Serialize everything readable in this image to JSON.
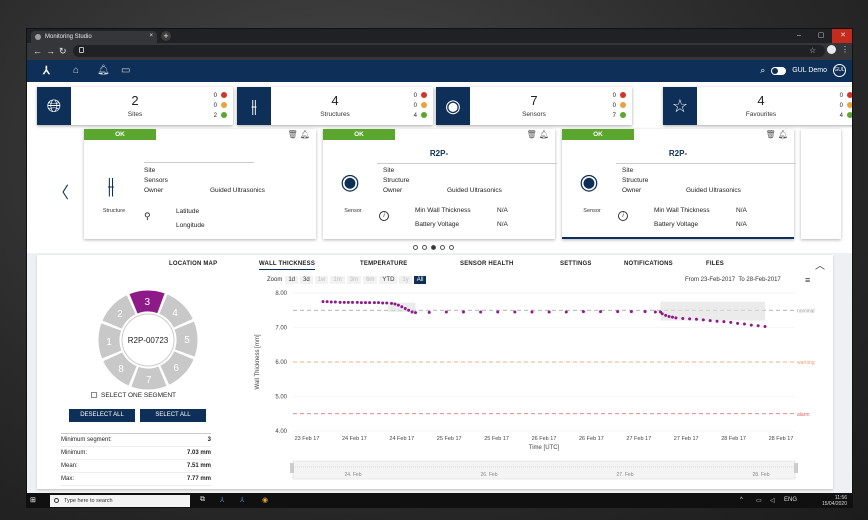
{
  "browser": {
    "tab_title": "Monitoring Studio",
    "new_tab": "+",
    "close": "×",
    "window_controls": [
      "–",
      "▢",
      "✕"
    ]
  },
  "header": {
    "user_name": "GUL Demo",
    "avatar_initials": "GUL"
  },
  "summary": [
    {
      "icon": "globe-icon",
      "count": "2",
      "label": "Sites",
      "red": "0",
      "amber": "0",
      "green": "2"
    },
    {
      "icon": "sliders-icon",
      "count": "4",
      "label": "Structures",
      "red": "0",
      "amber": "0",
      "green": "4"
    },
    {
      "icon": "sensor-icon",
      "count": "7",
      "label": "Sensors",
      "red": "0",
      "amber": "0",
      "green": "7"
    },
    {
      "icon": "star-icon",
      "count": "4",
      "label": "Favourites",
      "red": "0",
      "amber": "0",
      "green": "4"
    }
  ],
  "colors": {
    "navy": "#0e2f57",
    "red": "#d0342c",
    "amber": "#e8a33a",
    "green": "#5aa62f",
    "series": "#8e1a8a"
  },
  "cards": [
    {
      "status": "OK",
      "title": "",
      "caption": "Structure",
      "site_label": "Site",
      "site_value": "",
      "sensors_label": "Sensors",
      "sensors_value": "",
      "owner_label": "Owner",
      "owner_value": "Guided Ultrasonics",
      "lat_label": "Latitude",
      "lon_label": "Longitude"
    },
    {
      "status": "OK",
      "title": "R2P-",
      "caption": "Sensor",
      "site_label": "Site",
      "structure_label": "Structure",
      "owner_label": "Owner",
      "owner_value": "Guided Ultrasonics",
      "mwt_label": "Min Wall Thickness",
      "mwt_value": "N/A",
      "bv_label": "Battery Voltage",
      "bv_value": "N/A"
    },
    {
      "status": "OK",
      "title": "R2P-",
      "caption": "Sensor",
      "site_label": "Site",
      "structure_label": "Structure",
      "owner_label": "Owner",
      "owner_value": "Guided Ultrasonics",
      "mwt_label": "Min Wall Thickness",
      "mwt_value": "N/A",
      "bv_label": "Battery Voltage",
      "bv_value": "N/A"
    }
  ],
  "panel_tabs": [
    "LOCATION MAP",
    "WALL THICKNESS",
    "TEMPERATURE",
    "SENSOR HEALTH",
    "SETTINGS",
    "NOTIFICATIONS",
    "FILES"
  ],
  "segments": {
    "center_label": "R2P-00723",
    "selected": 3,
    "labels": [
      "1",
      "2",
      "3",
      "4",
      "5",
      "6",
      "7",
      "8"
    ],
    "select_one_label": "SELECT ONE SEGMENT",
    "deselect_label": "DESELECT ALL",
    "select_label": "SELECT ALL"
  },
  "stats": [
    {
      "label": "Minimum segment:",
      "value": "3"
    },
    {
      "label": "Minimum:",
      "value": "7.03 mm"
    },
    {
      "label": "Mean:",
      "value": "7.51 mm"
    },
    {
      "label": "Max:",
      "value": "7.77 mm"
    }
  ],
  "zoom": {
    "label": "Zoom",
    "options": [
      "1d",
      "3d",
      "1w",
      "1m",
      "3m",
      "6m",
      "YTD",
      "1y",
      "All"
    ],
    "active": "All",
    "enabled": [
      "1d",
      "3d",
      "YTD",
      "All"
    ],
    "from_label": "From",
    "from_value": "23-Feb-2017",
    "to_label": "To",
    "to_value": "28-Feb-2017"
  },
  "chart_data": {
    "type": "line",
    "ylabel": "Wall Thickness [mm]",
    "xlabel": "Time [UTC]",
    "ylim": [
      4.0,
      8.0
    ],
    "yticks": [
      "8.00",
      "7.00",
      "6.00",
      "5.00",
      "4.00"
    ],
    "xticks": [
      "23 Feb 17",
      "24 Feb 17",
      "24 Feb 17",
      "25 Feb 17",
      "25 Feb 17",
      "26 Feb 17",
      "26 Feb 17",
      "27 Feb 17",
      "27 Feb 17",
      "28 Feb 17",
      "28 Feb 17"
    ],
    "navigator_ticks": [
      "24. Feb",
      "26. Feb",
      "27. Feb",
      "28. Feb"
    ],
    "thresholds": [
      {
        "name": "nominal",
        "value": 7.5,
        "color": "#9a9a9a"
      },
      {
        "name": "warning",
        "value": 6.0,
        "color": "#e8a070"
      },
      {
        "name": "alarm",
        "value": 4.5,
        "color": "#e06060"
      }
    ],
    "series": [
      {
        "values": [
          7.75,
          7.75,
          7.74,
          7.74,
          7.73,
          7.73,
          7.73,
          7.73,
          7.73,
          7.72,
          7.72,
          7.72,
          7.72,
          7.72,
          7.71,
          7.71,
          7.7,
          7.68,
          7.65,
          7.6,
          7.55,
          7.5,
          7.45,
          7.43,
          7.44,
          7.45,
          7.45,
          7.45,
          7.45,
          7.45,
          7.45,
          7.45,
          7.45,
          7.46,
          7.46,
          7.46,
          7.46,
          7.46,
          7.45,
          7.45,
          7.4,
          7.35,
          7.32,
          7.3,
          7.28,
          7.26,
          7.25,
          7.24,
          7.22,
          7.2,
          7.18,
          7.17,
          7.15,
          7.12,
          7.1,
          7.07,
          7.05,
          7.03
        ],
        "x": [
          0,
          0.012,
          0.024,
          0.036,
          0.05,
          0.062,
          0.074,
          0.086,
          0.1,
          0.112,
          0.124,
          0.136,
          0.15,
          0.162,
          0.174,
          0.186,
          0.2,
          0.21,
          0.22,
          0.23,
          0.24,
          0.25,
          0.26,
          0.27,
          0.31,
          0.36,
          0.41,
          0.46,
          0.51,
          0.56,
          0.61,
          0.66,
          0.71,
          0.76,
          0.81,
          0.86,
          0.9,
          0.94,
          0.97,
          0.985,
          0.99,
          1.0,
          1.01,
          1.02,
          1.03,
          1.05,
          1.07,
          1.09,
          1.11,
          1.13,
          1.15,
          1.17,
          1.19,
          1.21,
          1.23,
          1.25,
          1.27,
          1.29
        ]
      }
    ]
  },
  "taskbar": {
    "search_placeholder": "Type here to search",
    "lang": "ENG",
    "time": "11:56",
    "date": "15/04/2020"
  }
}
